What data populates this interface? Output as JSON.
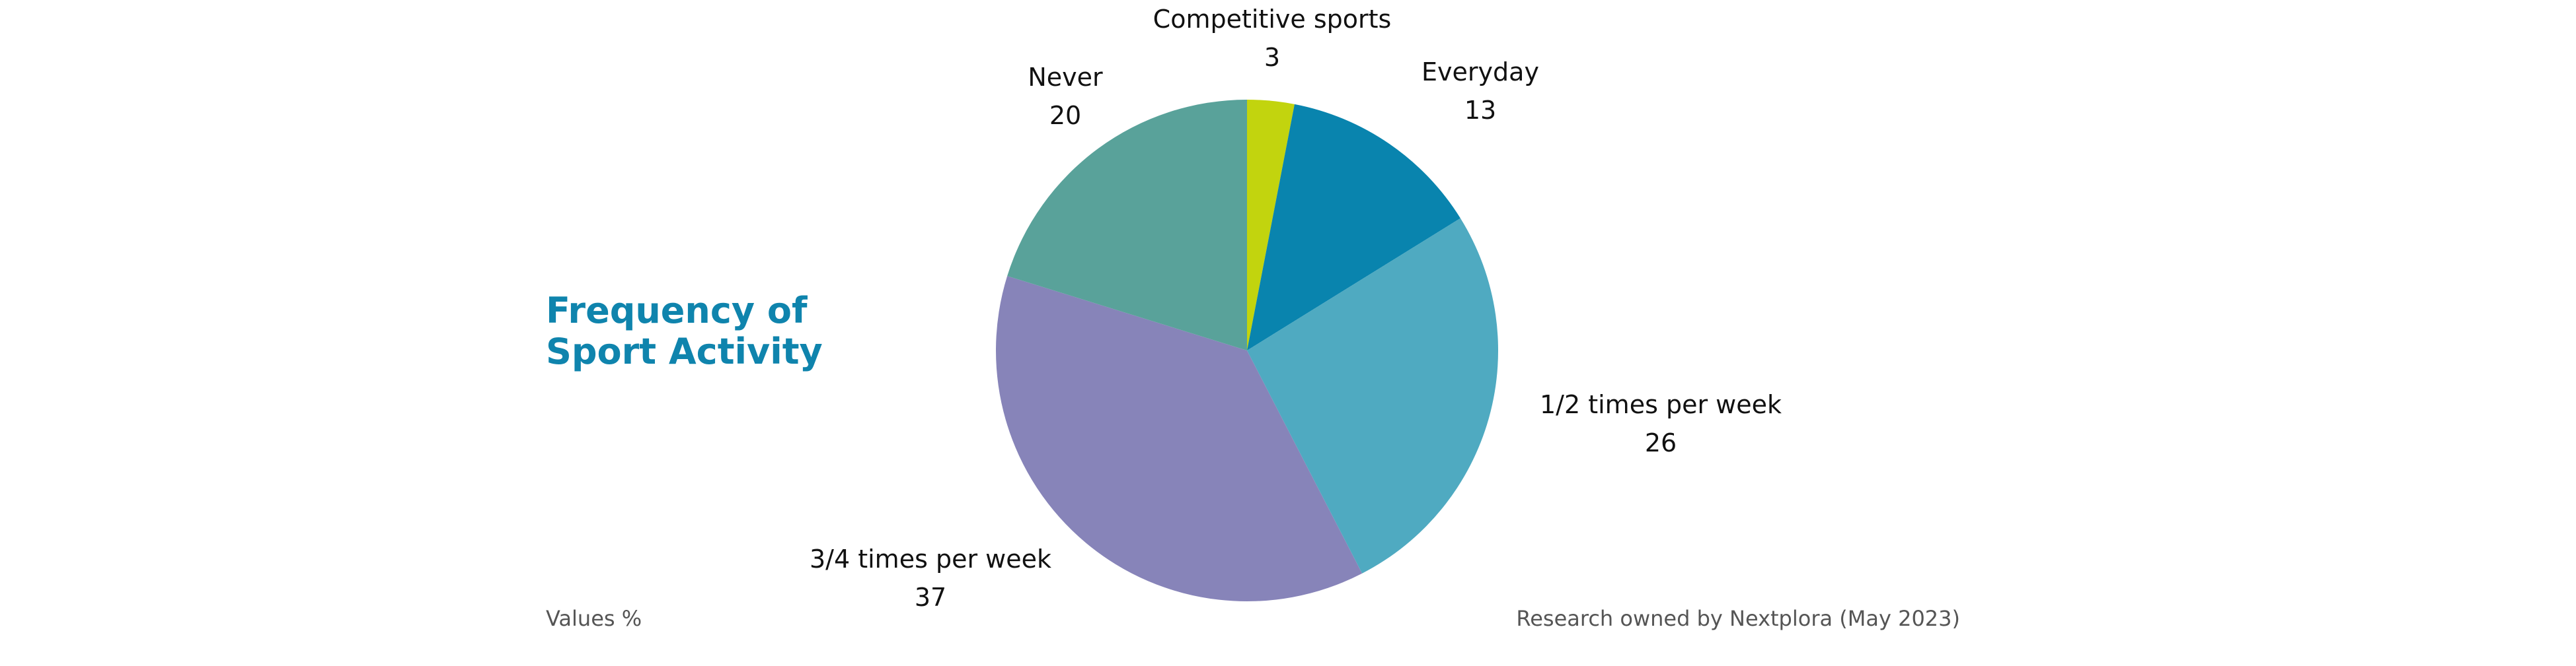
{
  "title": [
    "Frequency of",
    "Sport Activity"
  ],
  "footnote_left": "Values %",
  "footnote_right": "Research owned by Nextplora (May 2023)",
  "chart_data": {
    "type": "pie",
    "unit": "%",
    "start_angle_deg": 0,
    "direction": "clockwise",
    "slices": [
      {
        "label": "Competitive sports",
        "value": 3,
        "color": "#c2d40e"
      },
      {
        "label": "Everyday",
        "value": 13,
        "color": "#0984ae"
      },
      {
        "label": "1/2 times per week",
        "value": 26,
        "color": "#4faac1"
      },
      {
        "label": "3/4 times per week",
        "value": 37,
        "color": "#8784b9"
      },
      {
        "label": "Never",
        "value": 20,
        "color": "#59a29a"
      }
    ]
  }
}
